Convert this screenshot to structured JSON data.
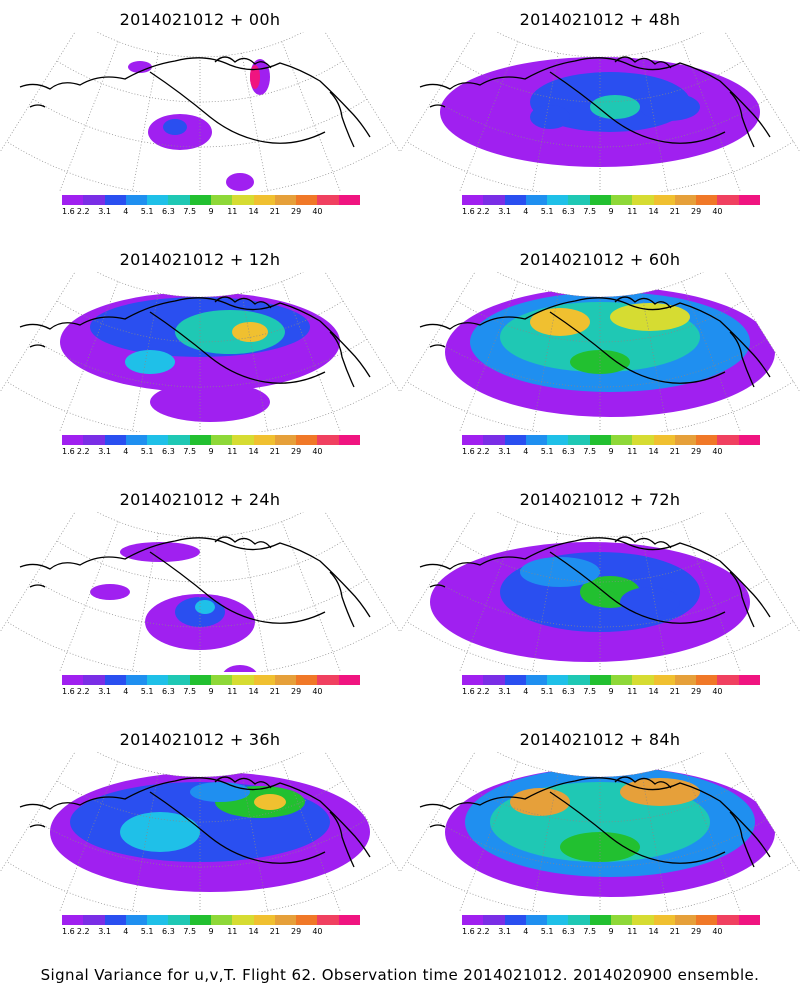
{
  "panels": [
    {
      "title": "2014021012 + 00h",
      "level": 0
    },
    {
      "title": "2014021012 + 48h",
      "level": 4
    },
    {
      "title": "2014021012 + 12h",
      "level": 1
    },
    {
      "title": "2014021012 + 60h",
      "level": 5
    },
    {
      "title": "2014021012 + 24h",
      "level": 2
    },
    {
      "title": "2014021012 + 72h",
      "level": 6
    },
    {
      "title": "2014021012 + 36h",
      "level": 3
    },
    {
      "title": "2014021012 + 84h",
      "level": 7
    }
  ],
  "colorbar": {
    "colors": [
      "#a020f0",
      "#7a2ee6",
      "#2a4ff0",
      "#1f8ff0",
      "#1fc0e8",
      "#1fc8b4",
      "#22c030",
      "#8ed838",
      "#d6dc32",
      "#f0c030",
      "#e6a03a",
      "#f07828",
      "#f04060",
      "#f01480"
    ],
    "ticks": [
      "1.6",
      "2.2",
      "3.1",
      "4",
      "5.1",
      "6.3",
      "7.5",
      "9",
      "11",
      "14",
      "21",
      "29",
      "40"
    ]
  },
  "caption": "Signal Variance for u,v,T. Flight 62. Observation time 2014021012. 2014020900 ensemble."
}
